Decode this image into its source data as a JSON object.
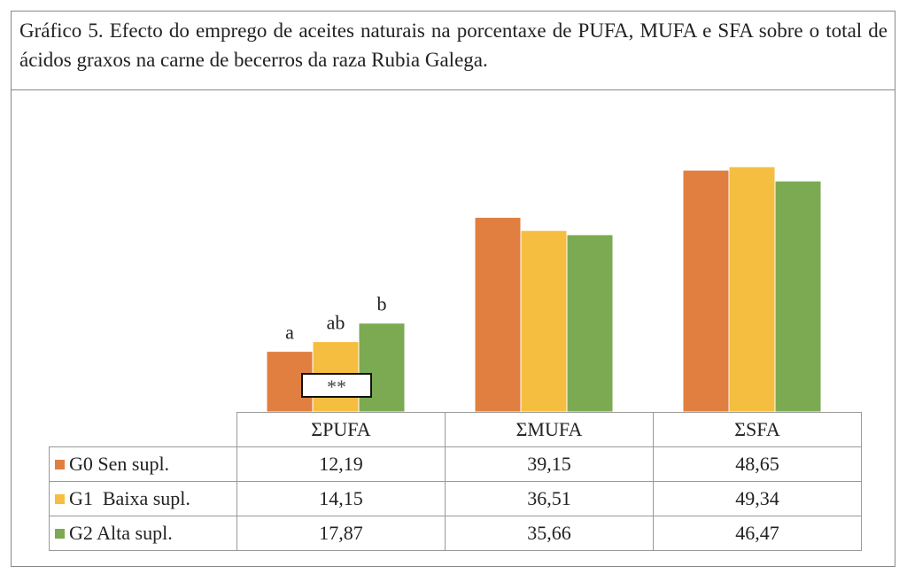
{
  "title": "Gráfico 5. Efecto do emprego de aceites naturais na porcentaxe de PUFA, MUFA e SFA sobre o total de ácidos graxos na carne de becerros da raza Rubia Galega.",
  "chart_data": {
    "type": "bar",
    "title": "Gráfico 5. Efecto do emprego de aceites naturais na porcentaxe de PUFA, MUFA e SFA sobre o total de ácidos graxos na carne de becerros da raza Rubia Galega.",
    "categories": [
      "ΣPUFA",
      "ΣMUFA",
      "ΣSFA"
    ],
    "series": [
      {
        "name": "G0 Sen supl.",
        "color": "#E07F3F",
        "values": [
          12.19,
          39.15,
          48.65
        ],
        "labels": [
          "12,19",
          "39,15",
          "48,65"
        ]
      },
      {
        "name": "G1  Baixa supl.",
        "color": "#F5BE40",
        "values": [
          14.15,
          36.51,
          49.34
        ],
        "labels": [
          "14,15",
          "36,51",
          "49,34"
        ]
      },
      {
        "name": "G2 Alta supl.",
        "color": "#7BAA52",
        "values": [
          17.87,
          35.66,
          46.47
        ],
        "labels": [
          "17,87",
          "35,66",
          "46,47"
        ]
      }
    ],
    "annotations": {
      "significance_letters": [
        "a",
        "ab",
        "b"
      ],
      "significance_category": "ΣPUFA",
      "significance_mark": "**"
    },
    "xlabel": "",
    "ylabel": "",
    "ylim": [
      0,
      55
    ],
    "grid": false,
    "legend": "data-table"
  }
}
